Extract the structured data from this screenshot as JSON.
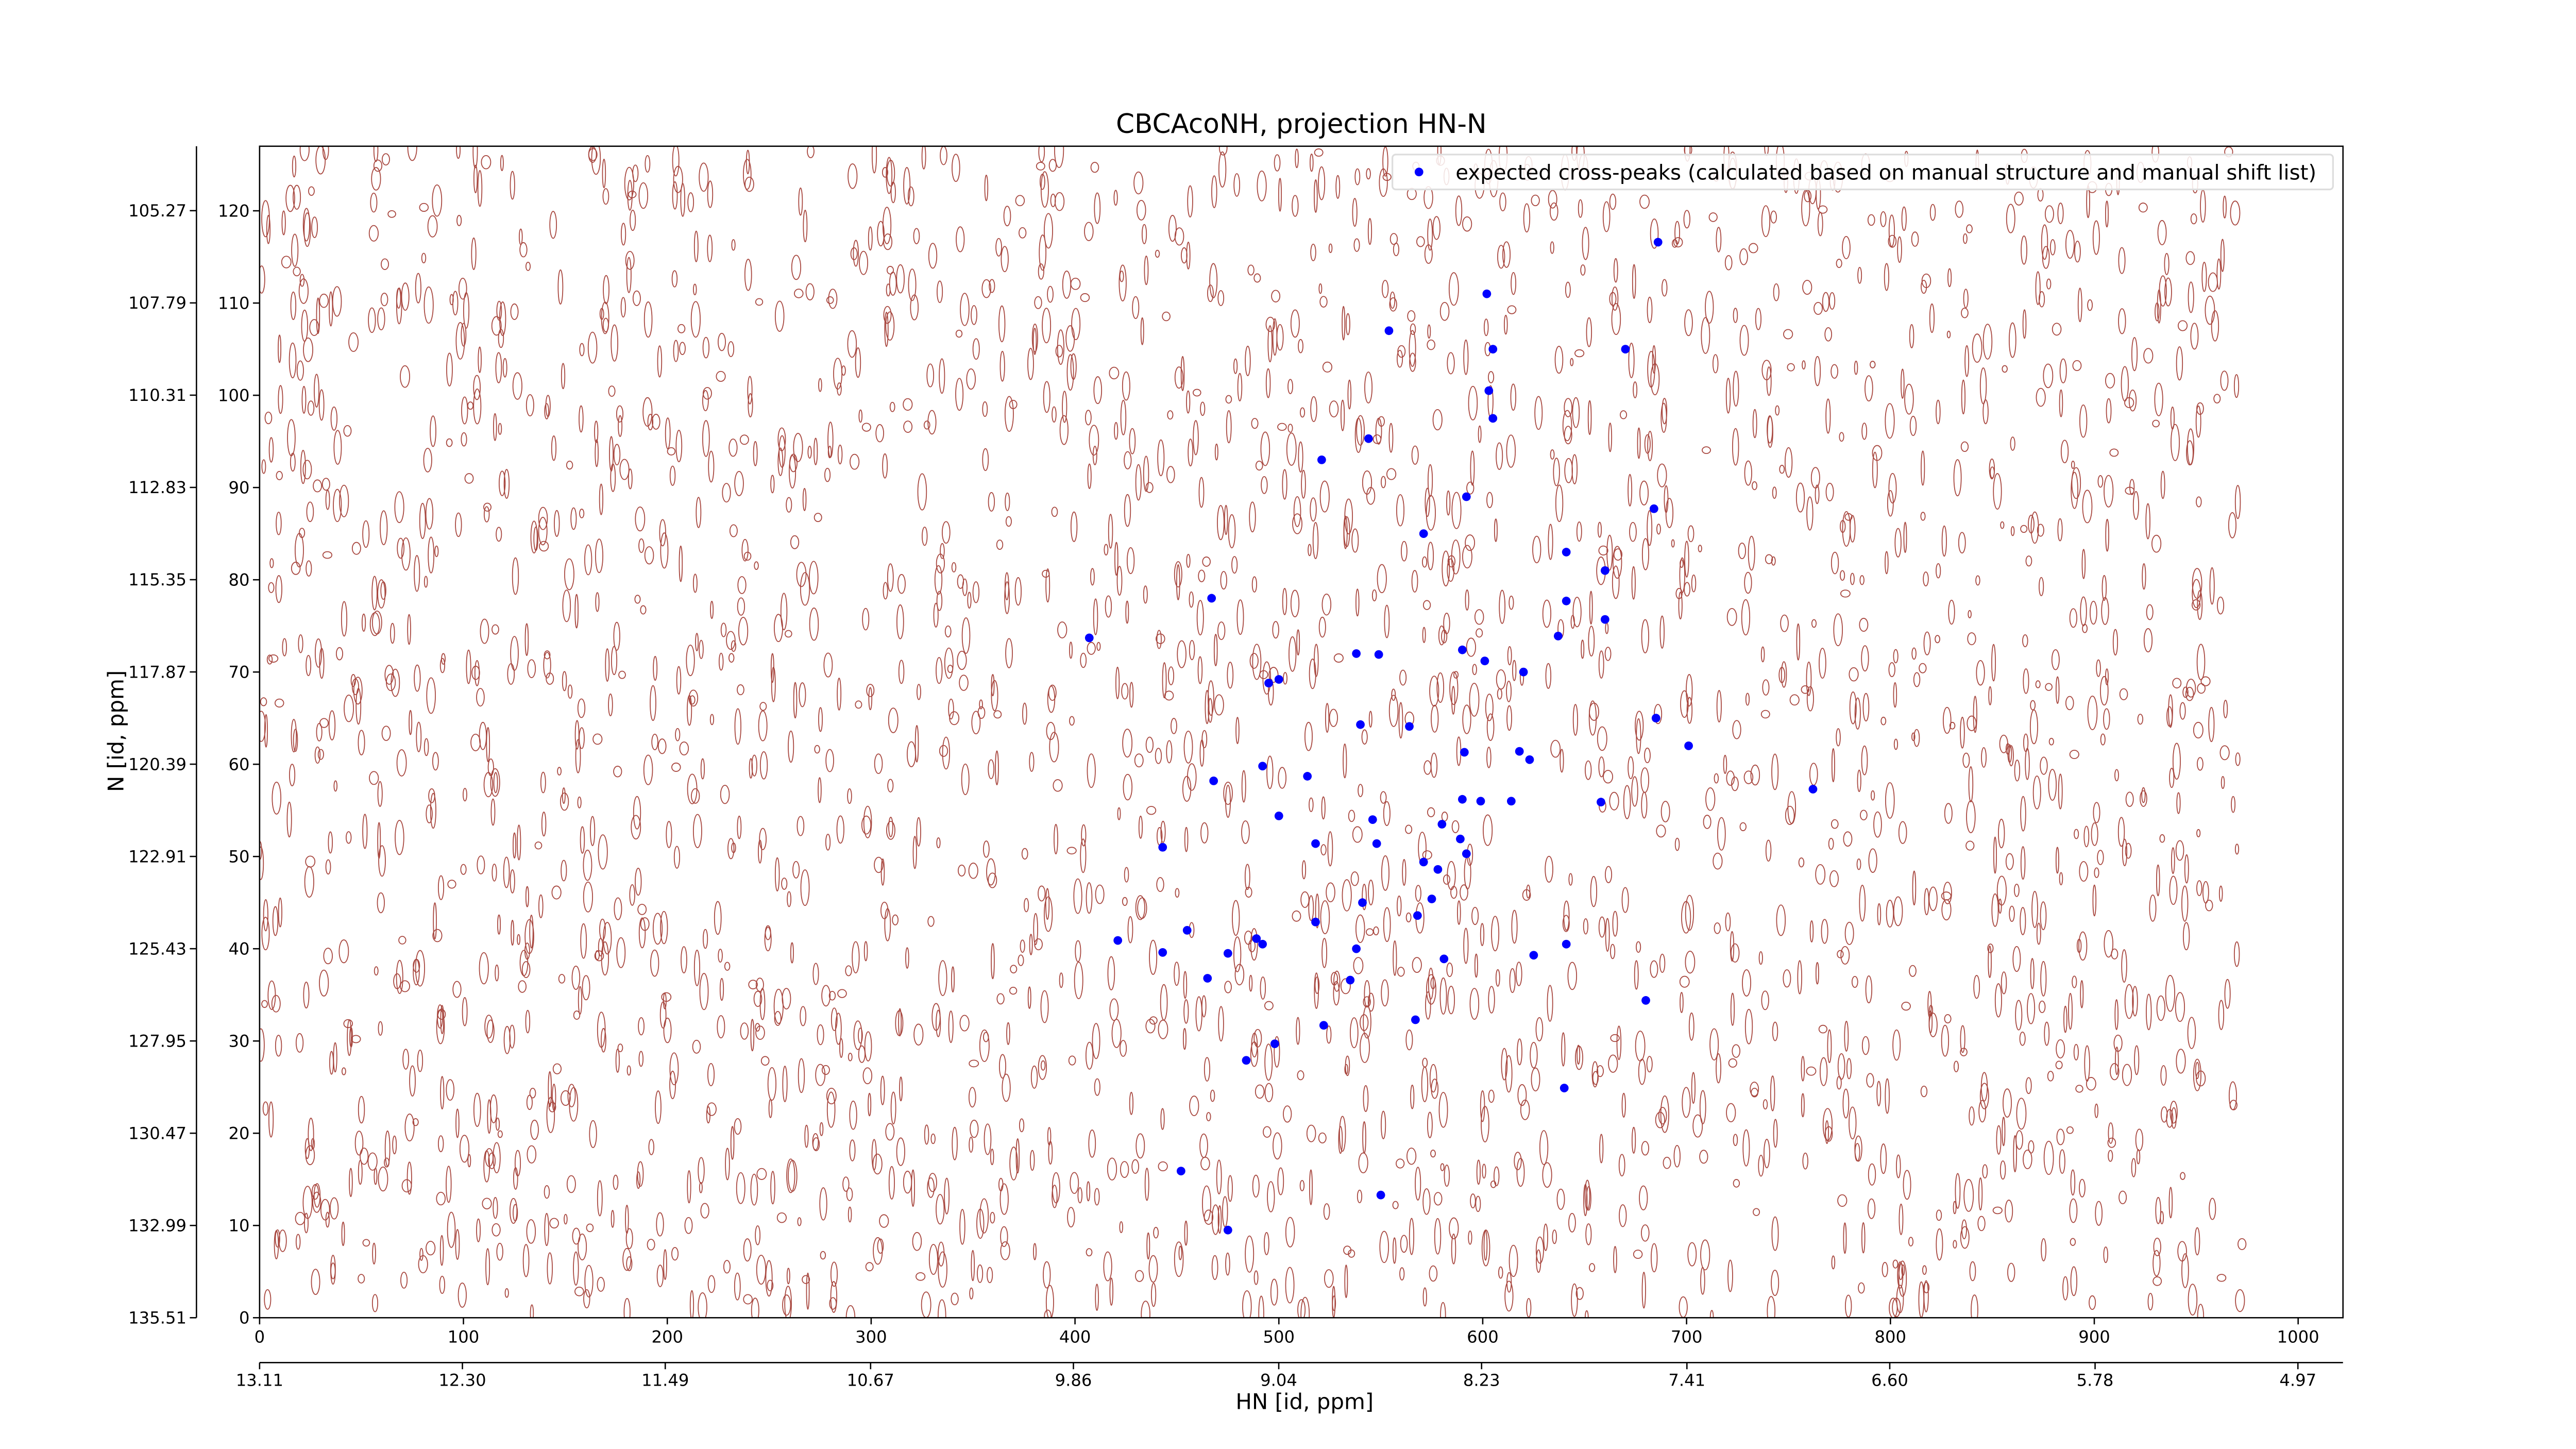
{
  "chart_data": {
    "type": "scatter",
    "title": "CBCAcoNH, projection HN-N",
    "x_label": "HN [id, ppm]",
    "y_label": "N [id, ppm]",
    "legend_position": "upper right",
    "xlim": [
      0,
      1022
    ],
    "ylim": [
      0,
      127
    ],
    "xticks": [
      0,
      100,
      200,
      300,
      400,
      500,
      600,
      700,
      800,
      900,
      1000
    ],
    "yticks": [
      0,
      10,
      20,
      30,
      40,
      50,
      60,
      70,
      80,
      90,
      100,
      110,
      120
    ],
    "x2lim": [
      13.11,
      4.79
    ],
    "x2ticks": [
      13.11,
      {
        "value": 12.3,
        "label": "12.30"
      },
      11.49,
      10.67,
      9.86,
      9.04,
      8.23,
      7.41,
      {
        "value": 6.6,
        "label": "6.60"
      },
      5.78,
      4.97
    ],
    "y2lim": [
      135.51,
      103.51
    ],
    "y2ticks": [
      105.27,
      107.79,
      110.31,
      112.83,
      115.35,
      117.87,
      120.39,
      122.91,
      125.43,
      127.95,
      130.47,
      132.99,
      135.51
    ],
    "series": [
      {
        "name": "expected cross-peaks (calculated based on manual structure and manual shift list)",
        "color": "#0000ff",
        "x": [
          686,
          602,
          554,
          605,
          670,
          603,
          605,
          544,
          521,
          592,
          684,
          571,
          641,
          660,
          467,
          641,
          660,
          637,
          407,
          590,
          538,
          549,
          601,
          620,
          495,
          500,
          685,
          540,
          564,
          701,
          591,
          618,
          623,
          492,
          514,
          468,
          762,
          590,
          599,
          614,
          658,
          500,
          546,
          580,
          589,
          518,
          443,
          548,
          592,
          571,
          578,
          575,
          541,
          568,
          518,
          455,
          421,
          489,
          492,
          641,
          538,
          443,
          475,
          625,
          581,
          465,
          535,
          680,
          567,
          522,
          498,
          484,
          640,
          452,
          550,
          475
        ],
        "values": [
          116.6,
          111,
          107,
          105,
          105,
          100.5,
          97.5,
          95.3,
          93,
          89,
          87.7,
          85,
          83,
          81,
          78,
          77.7,
          75.7,
          73.9,
          73.7,
          72.4,
          72,
          71.9,
          71.2,
          70,
          68.8,
          69.2,
          65,
          64.3,
          64.1,
          62,
          61.3,
          61.4,
          60.5,
          59.8,
          58.7,
          58.2,
          57.3,
          56.2,
          56,
          56,
          55.9,
          54.4,
          54,
          53.5,
          51.9,
          51.4,
          51,
          51.4,
          50.3,
          49.4,
          48.6,
          45.4,
          45,
          43.6,
          42.9,
          42,
          40.9,
          41.1,
          40.5,
          40.5,
          40,
          39.6,
          39.5,
          39.3,
          38.9,
          36.8,
          36.6,
          34.4,
          32.3,
          31.7,
          29.7,
          27.9,
          24.9,
          15.9,
          13.3,
          9.5
        ]
      }
    ]
  }
}
